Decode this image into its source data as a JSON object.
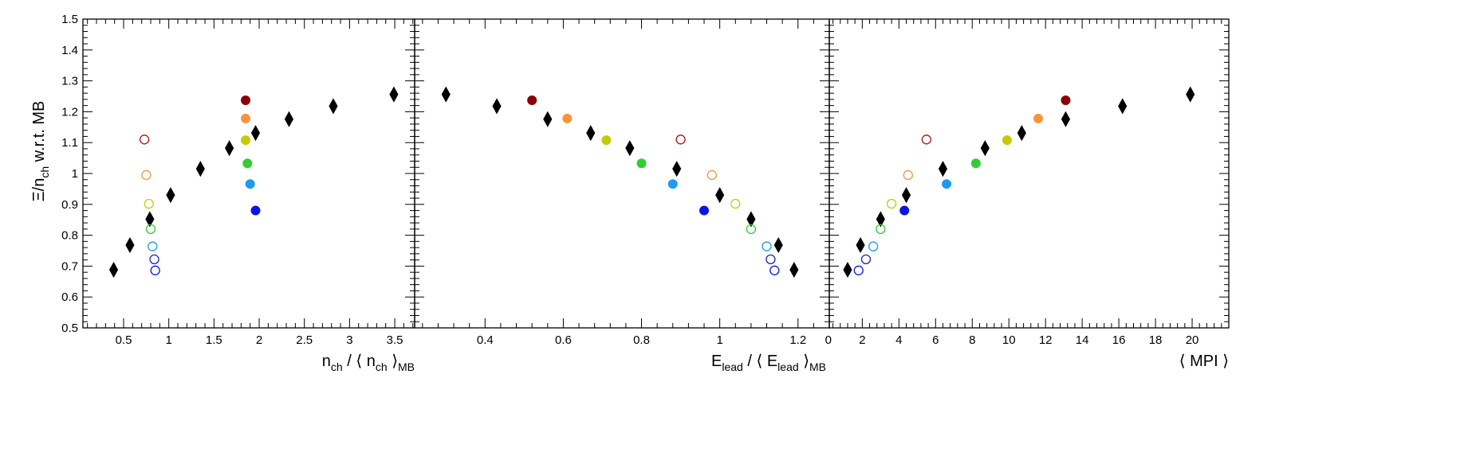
{
  "ylabel": {
    "main": "Ξ/n",
    "sub": "ch",
    "rest": " w.r.t. MB"
  },
  "chart_data": [
    {
      "type": "scatter",
      "xlabel": {
        "a": "n",
        "a_sub": "ch",
        "b": " / ⟨ n",
        "b_sub": "ch",
        "c": " ⟩",
        "c_sub": "MB"
      },
      "xlim": [
        0.05,
        3.72
      ],
      "ylim": [
        0.5,
        1.5
      ],
      "xticks": [
        0.5,
        1,
        1.5,
        2,
        2.5,
        3,
        3.5
      ],
      "xtick_labels": [
        "0.5",
        "1",
        "1.5",
        "2",
        "2.5",
        "3",
        "3.5"
      ],
      "yticks": [
        0.5,
        0.6,
        0.7,
        0.8,
        0.9,
        1.0,
        1.1,
        1.2,
        1.3,
        1.4,
        1.5
      ],
      "ytick_labels": [
        "0.5",
        "0.6",
        "0.7",
        "0.8",
        "0.9",
        "1",
        "1.1",
        "1.2",
        "1.3",
        "1.4",
        "1.5"
      ],
      "series": [
        {
          "marker": "diamond",
          "color": "#000000",
          "x": [
            0.39,
            0.57,
            0.79,
            1.02,
            1.35,
            1.67,
            1.96,
            2.33,
            2.82,
            3.49
          ],
          "y": [
            0.688,
            0.768,
            0.852,
            0.93,
            1.015,
            1.082,
            1.131,
            1.176,
            1.218,
            1.256
          ]
        },
        {
          "marker": "circle-filled",
          "x": [
            1.85,
            1.85,
            1.85,
            1.87,
            1.9,
            1.96
          ],
          "y": [
            1.237,
            1.178,
            1.108,
            1.033,
            0.966,
            0.88
          ],
          "colors": [
            "#8b0000",
            "#f7953a",
            "#c8c80a",
            "#32cd32",
            "#1e9bef",
            "#0a14e6"
          ]
        },
        {
          "marker": "circle-open",
          "x": [
            0.73,
            0.75,
            0.78,
            0.8,
            0.82,
            0.84,
            0.85
          ],
          "y": [
            1.11,
            0.995,
            0.902,
            0.82,
            0.764,
            0.722,
            0.686
          ],
          "colors": [
            "#b01010",
            "#f7953a",
            "#c8c80a",
            "#32cd32",
            "#1e9bef",
            "#2020c0",
            "#0a14e6"
          ]
        }
      ]
    },
    {
      "type": "scatter",
      "xlabel": {
        "a": "E",
        "a_sub": "lead",
        "b": " / ⟨ E",
        "b_sub": "lead",
        "c": " ⟩",
        "c_sub": "MB"
      },
      "xlim": [
        0.22,
        1.28
      ],
      "ylim": [
        0.5,
        1.5
      ],
      "xticks": [
        0.4,
        0.6,
        0.8,
        1.0,
        1.2
      ],
      "xtick_labels": [
        "0.4",
        "0.6",
        "0.8",
        "1",
        "1.2"
      ],
      "series": [
        {
          "marker": "diamond",
          "color": "#000000",
          "x": [
            0.3,
            0.43,
            0.56,
            0.67,
            0.77,
            0.89,
            1.0,
            1.08,
            1.15,
            1.19
          ],
          "y": [
            1.256,
            1.218,
            1.176,
            1.131,
            1.082,
            1.015,
            0.93,
            0.852,
            0.768,
            0.688
          ]
        },
        {
          "marker": "circle-filled",
          "x": [
            0.52,
            0.61,
            0.71,
            0.8,
            0.88,
            0.96
          ],
          "y": [
            1.237,
            1.178,
            1.108,
            1.033,
            0.966,
            0.88
          ],
          "colors": [
            "#8b0000",
            "#f7953a",
            "#c8c80a",
            "#32cd32",
            "#1e9bef",
            "#0a14e6"
          ]
        },
        {
          "marker": "circle-open",
          "x": [
            0.9,
            0.98,
            1.04,
            1.08,
            1.12,
            1.13,
            1.14
          ],
          "y": [
            1.11,
            0.995,
            0.902,
            0.82,
            0.764,
            0.722,
            0.686
          ],
          "colors": [
            "#b01010",
            "#f7953a",
            "#c8c80a",
            "#32cd32",
            "#1e9bef",
            "#2020c0",
            "#0a14e6"
          ]
        }
      ]
    },
    {
      "type": "scatter",
      "xlabel": {
        "a": "⟨ MPI ⟩"
      },
      "xlim": [
        0.2,
        22.0
      ],
      "ylim": [
        0.5,
        1.5
      ],
      "xticks": [
        0,
        2,
        4,
        6,
        8,
        10,
        12,
        14,
        16,
        18,
        20
      ],
      "xtick_labels": [
        "0",
        "2",
        "4",
        "6",
        "8",
        "10",
        "12",
        "14",
        "16",
        "18",
        "20"
      ],
      "series": [
        {
          "marker": "diamond",
          "color": "#000000",
          "x": [
            1.2,
            1.9,
            3.0,
            4.4,
            6.4,
            8.7,
            10.7,
            13.1,
            16.2,
            19.9
          ],
          "y": [
            0.688,
            0.768,
            0.852,
            0.93,
            1.015,
            1.082,
            1.131,
            1.176,
            1.218,
            1.256
          ]
        },
        {
          "marker": "circle-filled",
          "x": [
            13.1,
            11.6,
            9.9,
            8.2,
            6.6,
            4.3
          ],
          "y": [
            1.237,
            1.178,
            1.108,
            1.033,
            0.966,
            0.88
          ],
          "colors": [
            "#8b0000",
            "#f7953a",
            "#c8c80a",
            "#32cd32",
            "#1e9bef",
            "#0a14e6"
          ]
        },
        {
          "marker": "circle-open",
          "x": [
            5.5,
            4.5,
            3.6,
            3.0,
            2.6,
            2.2,
            1.8
          ],
          "y": [
            1.11,
            0.995,
            0.902,
            0.82,
            0.764,
            0.722,
            0.686
          ],
          "colors": [
            "#b01010",
            "#f7953a",
            "#c8c80a",
            "#32cd32",
            "#1e9bef",
            "#2020c0",
            "#0a14e6"
          ]
        }
      ]
    }
  ]
}
